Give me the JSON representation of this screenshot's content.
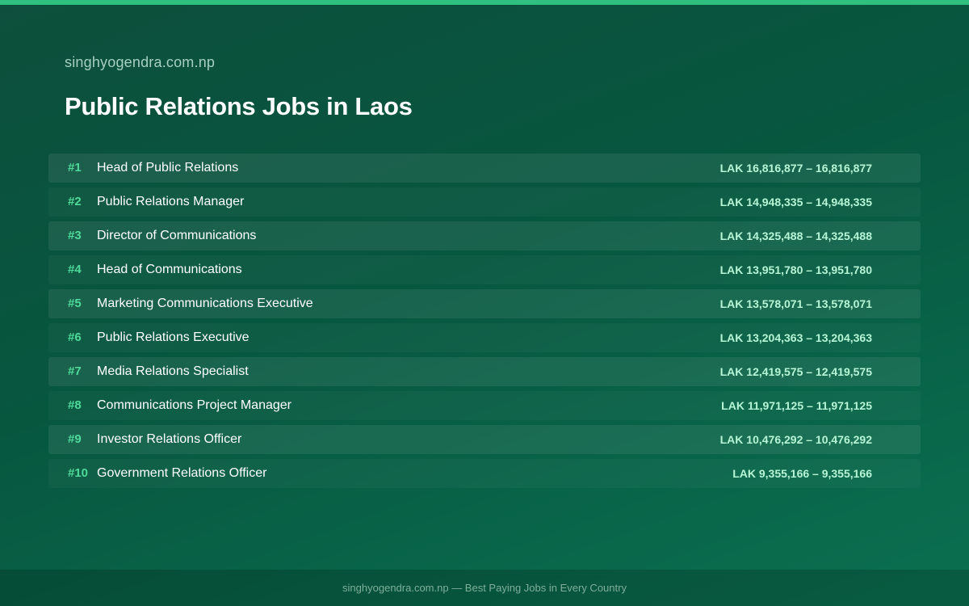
{
  "header": {
    "site_name": "singhyogendra.com.np",
    "title": "Public Relations Jobs in Laos"
  },
  "jobs": [
    {
      "rank": "#1",
      "title": "Head of Public Relations",
      "salary": "LAK 16,816,877 – 16,816,877"
    },
    {
      "rank": "#2",
      "title": "Public Relations Manager",
      "salary": "LAK 14,948,335 – 14,948,335"
    },
    {
      "rank": "#3",
      "title": "Director of Communications",
      "salary": "LAK 14,325,488 – 14,325,488"
    },
    {
      "rank": "#4",
      "title": "Head of Communications",
      "salary": "LAK 13,951,780 – 13,951,780"
    },
    {
      "rank": "#5",
      "title": "Marketing Communications Executive",
      "salary": "LAK 13,578,071 – 13,578,071"
    },
    {
      "rank": "#6",
      "title": "Public Relations Executive",
      "salary": "LAK 13,204,363 – 13,204,363"
    },
    {
      "rank": "#7",
      "title": "Media Relations Specialist",
      "salary": "LAK 12,419,575 – 12,419,575"
    },
    {
      "rank": "#8",
      "title": "Communications Project Manager",
      "salary": "LAK 11,971,125 – 11,971,125"
    },
    {
      "rank": "#9",
      "title": "Investor Relations Officer",
      "salary": "LAK 10,476,292 – 10,476,292"
    },
    {
      "rank": "#10",
      "title": "Government Relations Officer",
      "salary": "LAK 9,355,166 – 9,355,166"
    }
  ],
  "footer": {
    "text": "singhyogendra.com.np — Best Paying Jobs in Every Country"
  },
  "colors": {
    "background": "#07573f",
    "accent_bar": "#2fbf7f",
    "rank": "#4fd99a",
    "salary": "#b6f5d6"
  }
}
